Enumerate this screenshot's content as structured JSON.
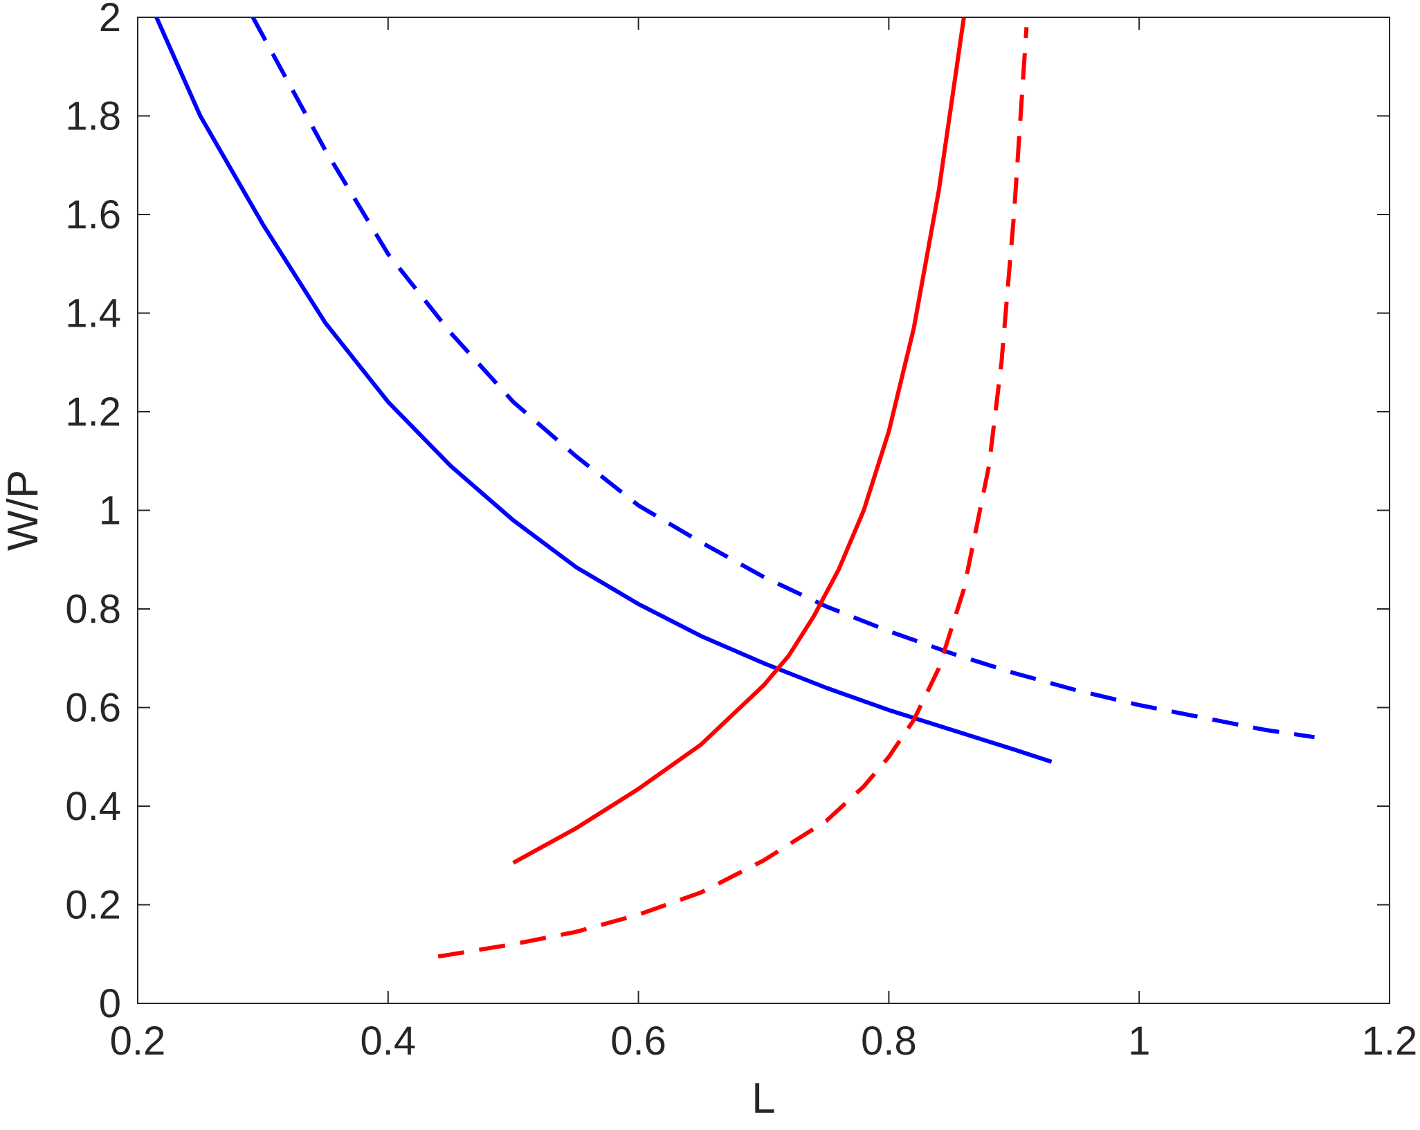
{
  "chart_data": {
    "type": "line",
    "xlabel": "L",
    "ylabel": "W/P",
    "xlim": [
      0.2,
      1.2
    ],
    "ylim": [
      0,
      2
    ],
    "x_ticks": [
      "0.2",
      "0.4",
      "0.6",
      "0.8",
      "1",
      "1.2"
    ],
    "y_ticks": [
      "0",
      "0.2",
      "0.4",
      "0.6",
      "0.8",
      "1",
      "1.2",
      "1.4",
      "1.6",
      "1.8",
      "2"
    ],
    "grid": false,
    "legend": "none",
    "colors": {
      "blue": "#0000ff",
      "red": "#ff0000",
      "axis": "#262626"
    },
    "series": [
      {
        "color": "#0000ff",
        "style": "solid",
        "points": [
          [
            0.215,
            2.0
          ],
          [
            0.25,
            1.8
          ],
          [
            0.3,
            1.58
          ],
          [
            0.35,
            1.38
          ],
          [
            0.4,
            1.22
          ],
          [
            0.45,
            1.09
          ],
          [
            0.5,
            0.98
          ],
          [
            0.55,
            0.885
          ],
          [
            0.6,
            0.81
          ],
          [
            0.65,
            0.745
          ],
          [
            0.7,
            0.69
          ],
          [
            0.75,
            0.64
          ],
          [
            0.8,
            0.595
          ],
          [
            0.85,
            0.555
          ],
          [
            0.9,
            0.515
          ],
          [
            0.93,
            0.49
          ]
        ]
      },
      {
        "color": "#0000ff",
        "style": "dashed",
        "points": [
          [
            0.292,
            2.0
          ],
          [
            0.35,
            1.73
          ],
          [
            0.4,
            1.52
          ],
          [
            0.45,
            1.36
          ],
          [
            0.5,
            1.22
          ],
          [
            0.55,
            1.11
          ],
          [
            0.6,
            1.01
          ],
          [
            0.65,
            0.935
          ],
          [
            0.7,
            0.865
          ],
          [
            0.75,
            0.805
          ],
          [
            0.8,
            0.755
          ],
          [
            0.85,
            0.71
          ],
          [
            0.9,
            0.67
          ],
          [
            0.95,
            0.635
          ],
          [
            1.0,
            0.605
          ],
          [
            1.05,
            0.58
          ],
          [
            1.1,
            0.555
          ],
          [
            1.14,
            0.54
          ]
        ]
      },
      {
        "color": "#ff0000",
        "style": "solid",
        "points": [
          [
            0.5,
            0.285
          ],
          [
            0.55,
            0.355
          ],
          [
            0.6,
            0.435
          ],
          [
            0.65,
            0.525
          ],
          [
            0.7,
            0.645
          ],
          [
            0.72,
            0.705
          ],
          [
            0.74,
            0.785
          ],
          [
            0.76,
            0.88
          ],
          [
            0.78,
            1.0
          ],
          [
            0.8,
            1.16
          ],
          [
            0.82,
            1.37
          ],
          [
            0.84,
            1.65
          ],
          [
            0.86,
            2.0
          ]
        ]
      },
      {
        "color": "#ff0000",
        "style": "dashed",
        "points": [
          [
            0.44,
            0.095
          ],
          [
            0.5,
            0.12
          ],
          [
            0.55,
            0.145
          ],
          [
            0.6,
            0.18
          ],
          [
            0.65,
            0.225
          ],
          [
            0.7,
            0.29
          ],
          [
            0.75,
            0.37
          ],
          [
            0.78,
            0.44
          ],
          [
            0.8,
            0.5
          ],
          [
            0.82,
            0.575
          ],
          [
            0.84,
            0.68
          ],
          [
            0.86,
            0.84
          ],
          [
            0.88,
            1.09
          ],
          [
            0.89,
            1.3
          ],
          [
            0.9,
            1.6
          ],
          [
            0.91,
            1.98
          ]
        ]
      }
    ]
  }
}
